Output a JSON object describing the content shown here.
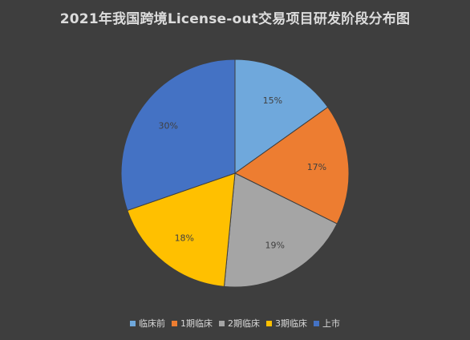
{
  "chart_data": {
    "type": "pie",
    "title": "2021年我国跨境License-out交易项目研发阶段分布图",
    "categories": [
      "临床前",
      "1期临床",
      "2期临床",
      "3期临床",
      "上市"
    ],
    "values": [
      15,
      17,
      19,
      18,
      30
    ],
    "value_labels": [
      "15%",
      "17%",
      "19%",
      "18%",
      "30%"
    ],
    "colors": [
      "#6fa8dc",
      "#ed7d31",
      "#a5a5a5",
      "#ffc000",
      "#4472c4"
    ],
    "legend_position": "bottom",
    "start": "12 o'clock, clockwise"
  }
}
